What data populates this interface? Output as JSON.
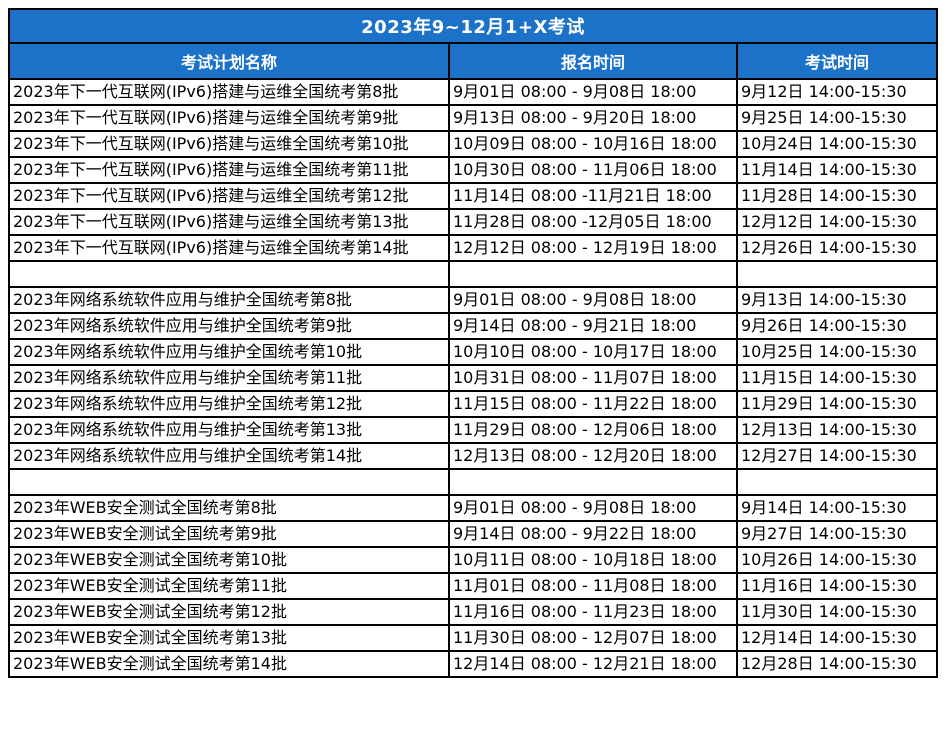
{
  "chart_data": {
    "type": "table",
    "title": "2023年9~12月1+X考试",
    "columns": [
      "考试计划名称",
      "报名时间",
      "考试时间"
    ],
    "groups": [
      {
        "rows": [
          [
            "2023年下一代互联网(IPv6)搭建与运维全国统考第8批",
            "9月01日 08:00 - 9月08日 18:00",
            "9月12日 14:00-15:30"
          ],
          [
            "2023年下一代互联网(IPv6)搭建与运维全国统考第9批",
            "9月13日 08:00 - 9月20日 18:00",
            "9月25日 14:00-15:30"
          ],
          [
            "2023年下一代互联网(IPv6)搭建与运维全国统考第10批",
            "10月09日 08:00 - 10月16日 18:00",
            "10月24日 14:00-15:30"
          ],
          [
            "2023年下一代互联网(IPv6)搭建与运维全国统考第11批",
            "10月30日 08:00 - 11月06日 18:00",
            "11月14日 14:00-15:30"
          ],
          [
            "2023年下一代互联网(IPv6)搭建与运维全国统考第12批",
            "11月14日 08:00 -11月21日 18:00",
            "11月28日 14:00-15:30"
          ],
          [
            "2023年下一代互联网(IPv6)搭建与运维全国统考第13批",
            "11月28日 08:00 -12月05日 18:00",
            "12月12日 14:00-15:30"
          ],
          [
            "2023年下一代互联网(IPv6)搭建与运维全国统考第14批",
            "12月12日 08:00 - 12月19日 18:00",
            "12月26日 14:00-15:30"
          ]
        ]
      },
      {
        "rows": [
          [
            "2023年网络系统软件应用与维护全国统考第8批",
            "9月01日 08:00 - 9月08日 18:00",
            "9月13日 14:00-15:30"
          ],
          [
            "2023年网络系统软件应用与维护全国统考第9批",
            "9月14日 08:00 - 9月21日 18:00",
            "9月26日 14:00-15:30"
          ],
          [
            "2023年网络系统软件应用与维护全国统考第10批",
            "10月10日 08:00 - 10月17日 18:00",
            "10月25日 14:00-15:30"
          ],
          [
            "2023年网络系统软件应用与维护全国统考第11批",
            "10月31日 08:00 - 11月07日 18:00",
            "11月15日 14:00-15:30"
          ],
          [
            "2023年网络系统软件应用与维护全国统考第12批",
            "11月15日 08:00 - 11月22日 18:00",
            "11月29日 14:00-15:30"
          ],
          [
            "2023年网络系统软件应用与维护全国统考第13批",
            "11月29日 08:00 - 12月06日 18:00",
            "12月13日 14:00-15:30"
          ],
          [
            "2023年网络系统软件应用与维护全国统考第14批",
            "12月13日 08:00 - 12月20日 18:00",
            "12月27日 14:00-15:30"
          ]
        ]
      },
      {
        "rows": [
          [
            "2023年WEB安全测试全国统考第8批",
            "9月01日 08:00 - 9月08日 18:00",
            "9月14日 14:00-15:30"
          ],
          [
            "2023年WEB安全测试全国统考第9批",
            "9月14日 08:00 - 9月22日 18:00",
            "9月27日 14:00-15:30"
          ],
          [
            "2023年WEB安全测试全国统考第10批",
            "10月11日 08:00 - 10月18日 18:00",
            "10月26日 14:00-15:30"
          ],
          [
            "2023年WEB安全测试全国统考第11批",
            "11月01日 08:00 - 11月08日 18:00",
            "11月16日 14:00-15:30"
          ],
          [
            "2023年WEB安全测试全国统考第12批",
            "11月16日 08:00 - 11月23日 18:00",
            "11月30日 14:00-15:30"
          ],
          [
            "2023年WEB安全测试全国统考第13批",
            "11月30日 08:00 - 12月07日 18:00",
            "12月14日 14:00-15:30"
          ],
          [
            "2023年WEB安全测试全国统考第14批",
            "12月14日 08:00 - 12月21日 18:00",
            "12月28日 14:00-15:30"
          ]
        ]
      }
    ],
    "layout": {
      "header_bg_color": "#1B72C8",
      "header_text_color": "#FFFFFF",
      "border_color": "#000000",
      "body_text_color": "#000000"
    }
  }
}
